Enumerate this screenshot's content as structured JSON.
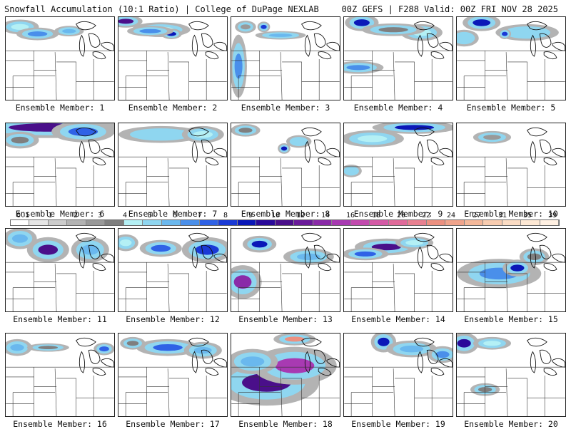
{
  "header": {
    "left": "Snowfall Accumulation (10:1 Ratio) | College of DuPage NEXLAB",
    "right": "00Z GEFS | F288 Valid: 00Z FRI NOV 28 2025"
  },
  "caption_prefix": "Ensemble Member: ",
  "panels": [
    {
      "label": "Ensemble Member: 1"
    },
    {
      "label": "Ensemble Member: 2"
    },
    {
      "label": "Ensemble Member: 3"
    },
    {
      "label": "Ensemble Member: 4"
    },
    {
      "label": "Ensemble Member: 5"
    },
    {
      "label": "Ensemble Member: 6"
    },
    {
      "label": "Ensemble Member: 7"
    },
    {
      "label": "Ensemble Member: 8"
    },
    {
      "label": "Ensemble Member: 9"
    },
    {
      "label": "Ensemble Member: 10"
    },
    {
      "label": "Ensemble Member: 11"
    },
    {
      "label": "Ensemble Member: 12"
    },
    {
      "label": "Ensemble Member: 13"
    },
    {
      "label": "Ensemble Member: 14"
    },
    {
      "label": "Ensemble Member: 15"
    },
    {
      "label": "Ensemble Member: 16"
    },
    {
      "label": "Ensemble Member: 17"
    },
    {
      "label": "Ensemble Member: 18"
    },
    {
      "label": "Ensemble Member: 19"
    },
    {
      "label": "Ensemble Member: 20"
    }
  ],
  "colorbar": {
    "labels": [
      "0.1",
      "1",
      "2",
      "3",
      "4",
      "5",
      "6",
      "7",
      "8",
      "9",
      "10",
      "12",
      "14",
      "16",
      "18",
      "20",
      "22",
      "24",
      "27",
      "31",
      "35",
      "39"
    ],
    "colors": [
      "#ffffff",
      "#e6e6e6",
      "#cccccc",
      "#b3b3b3",
      "#999999",
      "#7f7f7f",
      "#b4f0f5",
      "#8fd6f0",
      "#6ab8ee",
      "#4a8fea",
      "#2f62e6",
      "#1a3ad6",
      "#0a18b8",
      "#2a0a9a",
      "#4a0f8a",
      "#6a1a9a",
      "#8a2aa8",
      "#a83ab2",
      "#c24aae",
      "#d45aa6",
      "#e06a9a",
      "#e88090",
      "#ec9080",
      "#f0a48c",
      "#f4b89a",
      "#f8ccb0",
      "#fbdcc4",
      "#fde8d4",
      "#fff0e2"
    ]
  }
}
